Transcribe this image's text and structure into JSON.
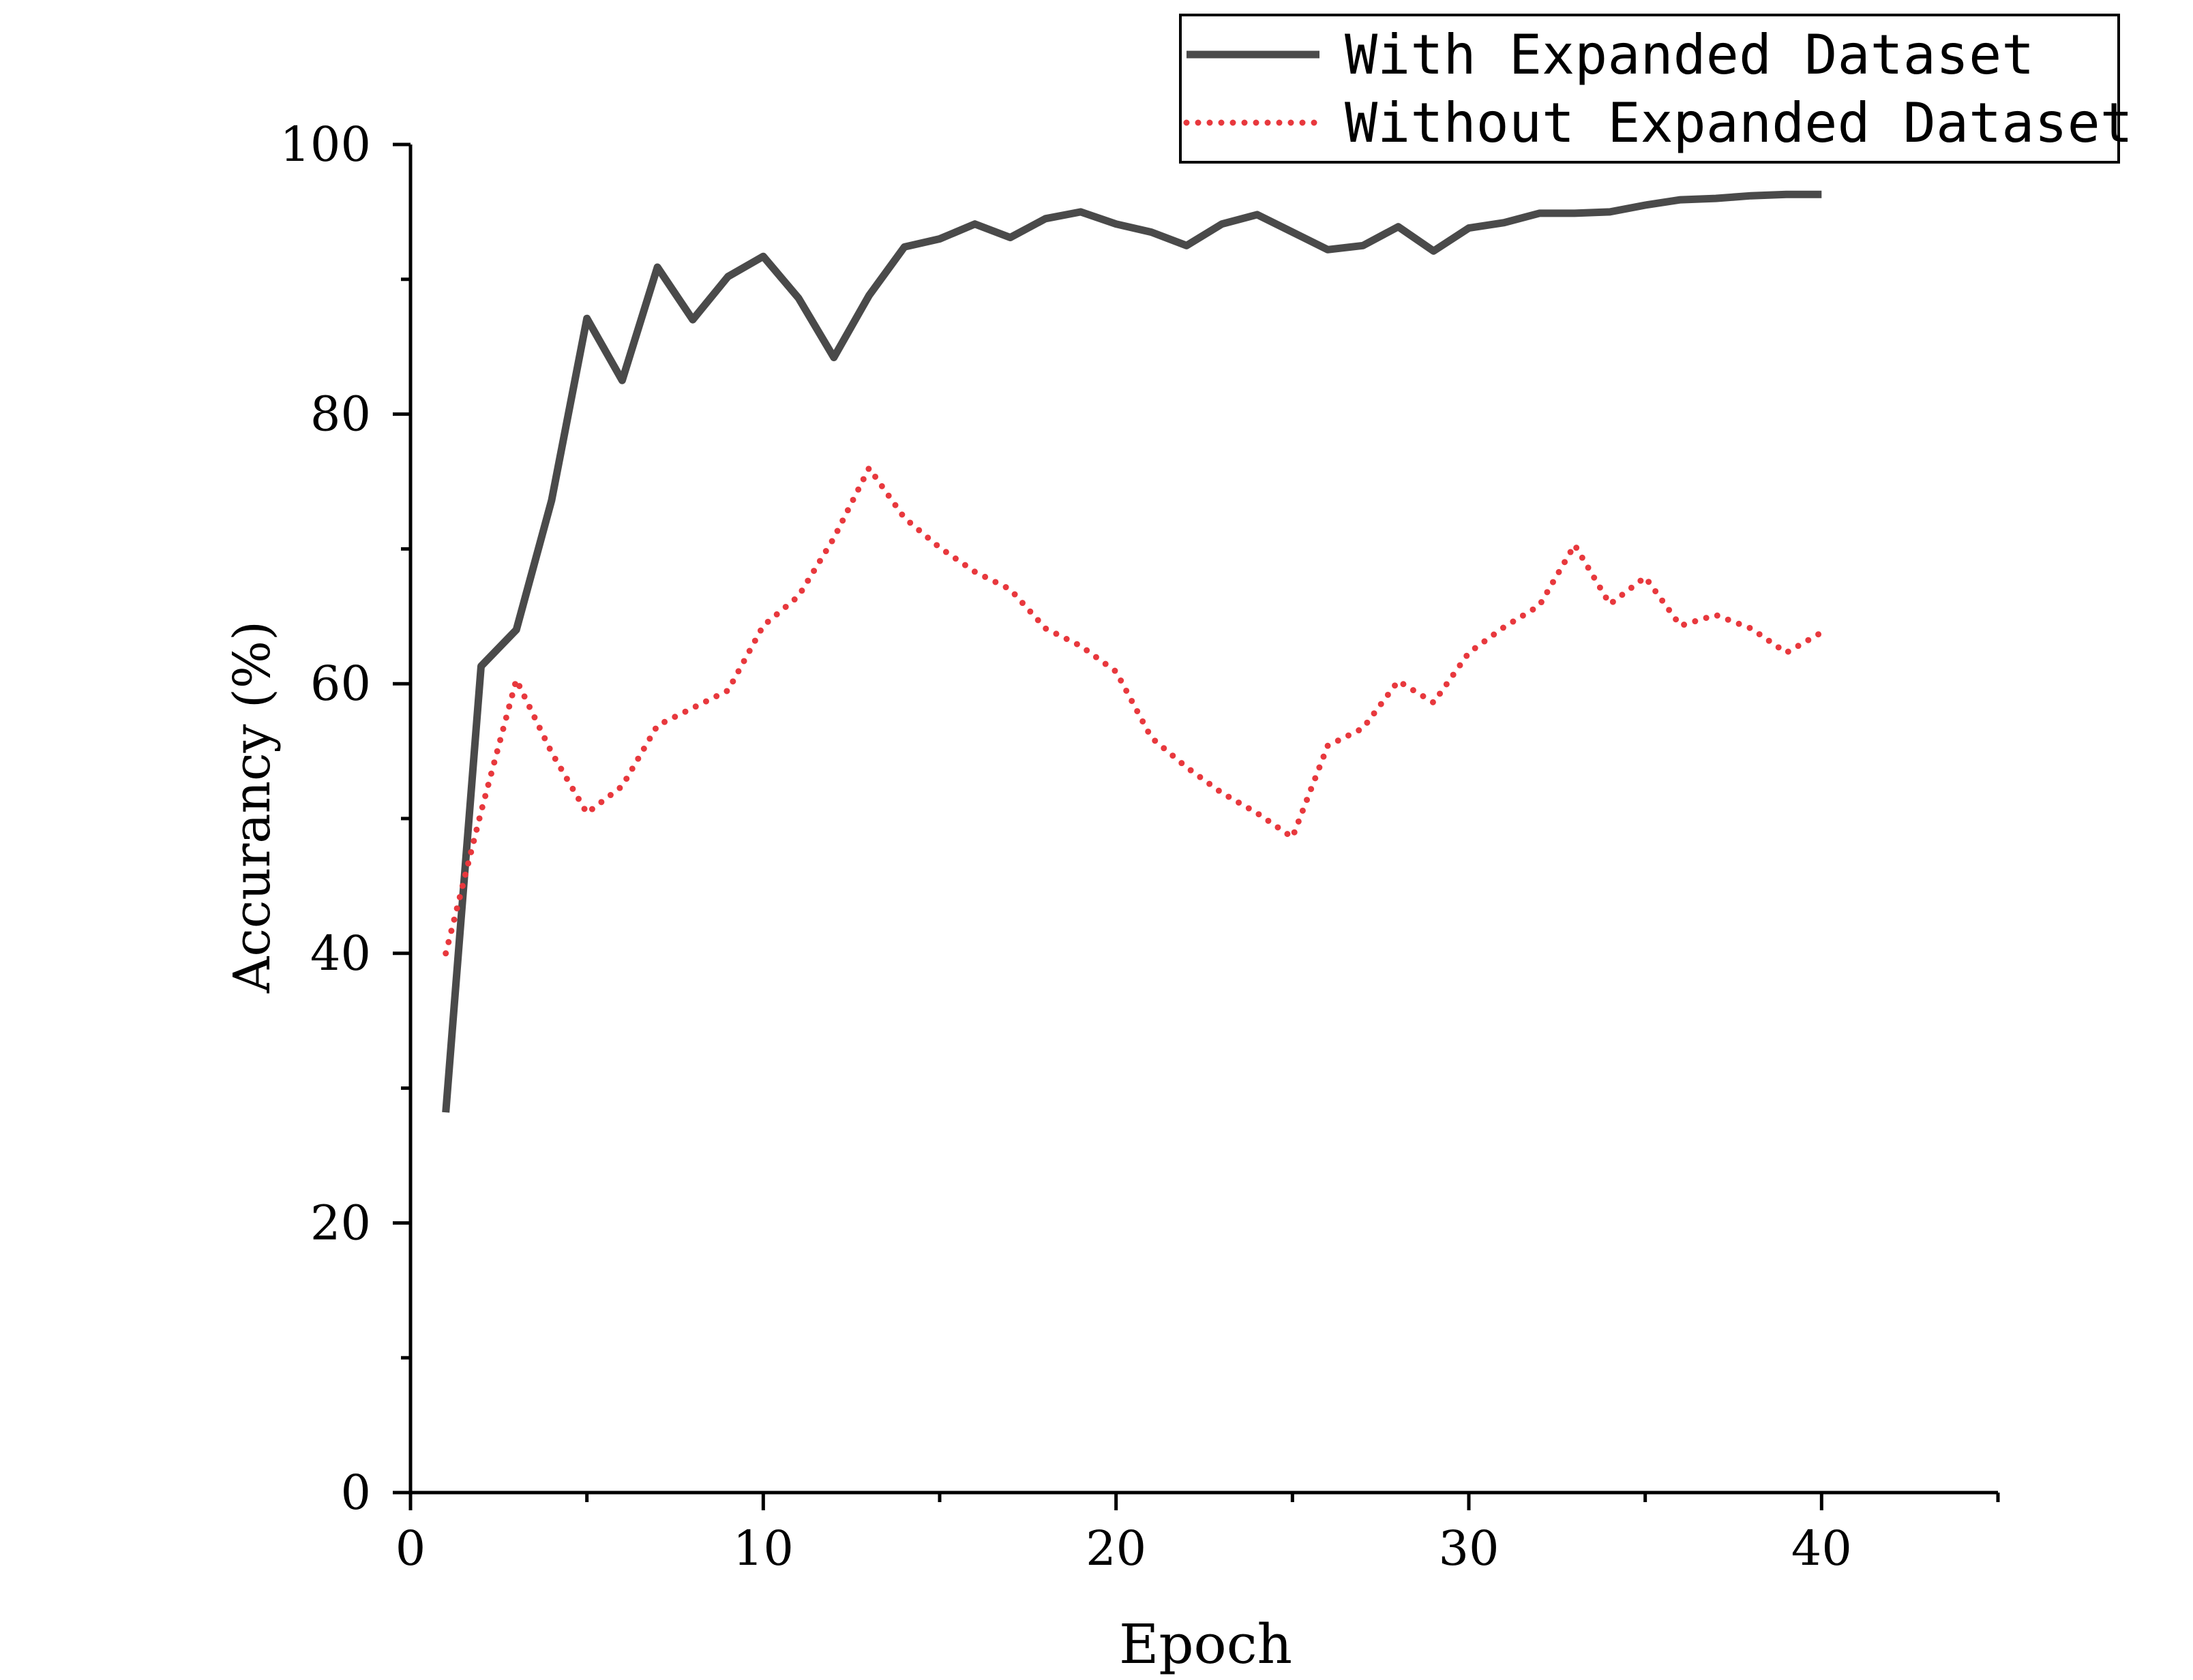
{
  "chart_data": {
    "type": "line",
    "title": "",
    "xlabel": "Epoch",
    "ylabel": "Accurancy (%)",
    "xlim": [
      0,
      45
    ],
    "ylim": [
      0,
      100
    ],
    "x_ticks": [
      0,
      10,
      20,
      30,
      40
    ],
    "x_tick_labels": [
      "0",
      "10",
      "20",
      "30",
      "40"
    ],
    "y_ticks": [
      0,
      20,
      40,
      60,
      80,
      100
    ],
    "y_tick_labels": [
      "0",
      "20",
      "40",
      "60",
      "80",
      "100"
    ],
    "x_minor_ticks": [
      5,
      15,
      25,
      35,
      45
    ],
    "y_minor_ticks": [
      10,
      30,
      50,
      70,
      90
    ],
    "grid": false,
    "legend_position": "top-right",
    "x": [
      1,
      2,
      3,
      4,
      5,
      6,
      7,
      8,
      9,
      10,
      11,
      12,
      13,
      14,
      15,
      16,
      17,
      18,
      19,
      20,
      21,
      22,
      23,
      24,
      25,
      26,
      27,
      28,
      29,
      30,
      31,
      32,
      33,
      34,
      35,
      36,
      37,
      38,
      39,
      40
    ],
    "series": [
      {
        "name": "With Expanded Dataset",
        "color": "#4a4a4a",
        "style": "solid",
        "values": [
          28.2,
          61.3,
          64.0,
          73.6,
          87.1,
          82.5,
          90.9,
          87.0,
          90.2,
          91.7,
          88.6,
          84.2,
          88.8,
          92.4,
          93.0,
          94.1,
          93.1,
          94.5,
          95.0,
          94.1,
          93.5,
          92.5,
          94.1,
          94.8,
          93.5,
          92.2,
          92.5,
          93.9,
          92.1,
          93.8,
          94.2,
          94.9,
          94.9,
          95.0,
          95.5,
          95.9,
          96.0,
          96.2,
          96.3,
          96.3
        ]
      },
      {
        "name": "Without Expanded Dataset",
        "color": "#e8383d",
        "style": "dotted",
        "values": [
          40.0,
          50.5,
          60.3,
          54.9,
          50.4,
          52.4,
          56.9,
          58.2,
          59.5,
          64.3,
          66.5,
          70.8,
          76.0,
          72.3,
          70.1,
          68.3,
          67.0,
          64.1,
          62.8,
          60.9,
          56.0,
          53.8,
          51.9,
          50.4,
          48.6,
          55.4,
          56.7,
          60.2,
          58.6,
          62.3,
          64.2,
          65.8,
          70.3,
          65.9,
          67.9,
          64.3,
          65.1,
          64.1,
          62.3,
          63.8
        ]
      }
    ]
  }
}
